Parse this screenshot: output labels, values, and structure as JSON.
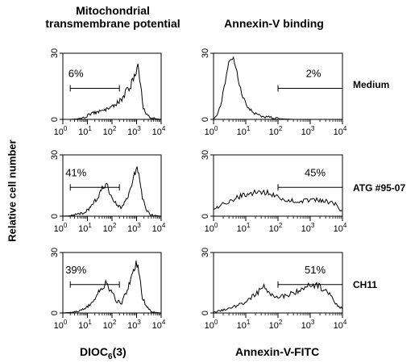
{
  "headers": {
    "left": [
      "Mitochondrial",
      "transmembrane potential"
    ],
    "right": "Annexin-V binding"
  },
  "ylabel": "Relative cell number",
  "row_labels": [
    "Medium",
    "ATG #95-07",
    "CH11"
  ],
  "xtitles": {
    "left_main": "DIOC",
    "left_sub": "6",
    "left_tail": "(3)",
    "right": "Annexin-V-FITC"
  },
  "chart_data": [
    {
      "type": "histogram",
      "panel": "Medium / DIOC6(3)",
      "xscale": "log",
      "xlim": [
        1,
        10000
      ],
      "ylim": [
        0,
        30
      ],
      "yticks": [
        "0",
        "30"
      ],
      "xtick_labels": [
        "10^0",
        "10^1",
        "10^2",
        "10^3",
        "10^4"
      ],
      "gate": [
        2,
        200
      ],
      "gate_percent": "6%",
      "profile": [
        [
          1,
          0
        ],
        [
          2,
          0
        ],
        [
          4,
          0.2
        ],
        [
          8,
          1
        ],
        [
          12,
          2.5
        ],
        [
          20,
          3
        ],
        [
          40,
          4
        ],
        [
          80,
          5
        ],
        [
          150,
          7
        ],
        [
          250,
          9
        ],
        [
          400,
          13
        ],
        [
          700,
          17
        ],
        [
          1000,
          23
        ],
        [
          1150,
          24
        ],
        [
          1400,
          17
        ],
        [
          1800,
          6
        ],
        [
          2500,
          2
        ],
        [
          4000,
          0.5
        ],
        [
          10000,
          0
        ]
      ]
    },
    {
      "type": "histogram",
      "panel": "Medium / Annexin-V-FITC",
      "xscale": "log",
      "xlim": [
        1,
        10000
      ],
      "ylim": [
        0,
        30
      ],
      "yticks": [
        "0",
        "30"
      ],
      "xtick_labels": [
        "10^0",
        "10^1",
        "10^2",
        "10^3",
        "10^4"
      ],
      "gate": [
        100,
        10000
      ],
      "gate_percent": "2%",
      "profile": [
        [
          1,
          0
        ],
        [
          1.5,
          4
        ],
        [
          2,
          12
        ],
        [
          2.7,
          24
        ],
        [
          3.5,
          28
        ],
        [
          4.5,
          26
        ],
        [
          6,
          18
        ],
        [
          8,
          10
        ],
        [
          12,
          5
        ],
        [
          20,
          2.5
        ],
        [
          40,
          1.2
        ],
        [
          100,
          0.3
        ],
        [
          300,
          0
        ],
        [
          10000,
          0
        ]
      ]
    },
    {
      "type": "histogram",
      "panel": "ATG #95-07 / DIOC6(3)",
      "xscale": "log",
      "xlim": [
        1,
        10000
      ],
      "ylim": [
        0,
        30
      ],
      "yticks": [
        "0",
        "30"
      ],
      "xtick_labels": [
        "10^0",
        "10^1",
        "10^2",
        "10^3",
        "10^4"
      ],
      "gate": [
        2,
        200
      ],
      "gate_percent": "41%",
      "profile": [
        [
          1,
          0
        ],
        [
          2,
          0.2
        ],
        [
          4,
          0.8
        ],
        [
          8,
          2
        ],
        [
          15,
          5
        ],
        [
          25,
          9
        ],
        [
          40,
          14
        ],
        [
          55,
          16
        ],
        [
          80,
          12
        ],
        [
          130,
          7
        ],
        [
          220,
          4
        ],
        [
          400,
          8
        ],
        [
          700,
          18
        ],
        [
          1000,
          24
        ],
        [
          1300,
          20
        ],
        [
          1700,
          9
        ],
        [
          2500,
          3
        ],
        [
          4000,
          0.5
        ],
        [
          10000,
          0
        ]
      ]
    },
    {
      "type": "histogram",
      "panel": "ATG #95-07 / Annexin-V-FITC",
      "xscale": "log",
      "xlim": [
        1,
        10000
      ],
      "ylim": [
        0,
        30
      ],
      "yticks": [
        "0",
        "30"
      ],
      "xtick_labels": [
        "10^0",
        "10^1",
        "10^2",
        "10^3",
        "10^4"
      ],
      "gate": [
        100,
        10000
      ],
      "gate_percent": "45%",
      "profile": [
        [
          1,
          3
        ],
        [
          2,
          6
        ],
        [
          5,
          9
        ],
        [
          10,
          10.5
        ],
        [
          30,
          12
        ],
        [
          60,
          11
        ],
        [
          100,
          9
        ],
        [
          200,
          7.5
        ],
        [
          500,
          7.5
        ],
        [
          1000,
          8
        ],
        [
          3000,
          7.5
        ],
        [
          6000,
          6
        ],
        [
          10000,
          2
        ]
      ]
    },
    {
      "type": "histogram",
      "panel": "CH11 / DIOC6(3)",
      "xscale": "log",
      "xlim": [
        1,
        10000
      ],
      "ylim": [
        0,
        30
      ],
      "yticks": [
        "0",
        "30"
      ],
      "xtick_labels": [
        "10^0",
        "10^1",
        "10^2",
        "10^3",
        "10^4"
      ],
      "gate": [
        2,
        200
      ],
      "gate_percent": "39%",
      "profile": [
        [
          1,
          0
        ],
        [
          2,
          0.3
        ],
        [
          4,
          1
        ],
        [
          8,
          2.5
        ],
        [
          15,
          5
        ],
        [
          25,
          9
        ],
        [
          40,
          13
        ],
        [
          60,
          15
        ],
        [
          90,
          11
        ],
        [
          150,
          6
        ],
        [
          250,
          5
        ],
        [
          450,
          13
        ],
        [
          700,
          20
        ],
        [
          1000,
          25
        ],
        [
          1300,
          19
        ],
        [
          1700,
          8
        ],
        [
          2500,
          3
        ],
        [
          4000,
          0.5
        ],
        [
          10000,
          0
        ]
      ]
    },
    {
      "type": "histogram",
      "panel": "CH11 / Annexin-V-FITC",
      "xscale": "log",
      "xlim": [
        1,
        10000
      ],
      "ylim": [
        0,
        30
      ],
      "yticks": [
        "0",
        "30"
      ],
      "xtick_labels": [
        "10^0",
        "10^1",
        "10^2",
        "10^3",
        "10^4"
      ],
      "gate": [
        100,
        10000
      ],
      "gate_percent": "51%",
      "profile": [
        [
          1,
          0.5
        ],
        [
          3,
          2
        ],
        [
          8,
          5
        ],
        [
          20,
          9
        ],
        [
          35,
          13
        ],
        [
          50,
          11
        ],
        [
          80,
          8
        ],
        [
          150,
          8
        ],
        [
          400,
          11
        ],
        [
          1000,
          14
        ],
        [
          2000,
          13
        ],
        [
          3500,
          10
        ],
        [
          6000,
          5
        ],
        [
          10000,
          2
        ]
      ]
    }
  ]
}
